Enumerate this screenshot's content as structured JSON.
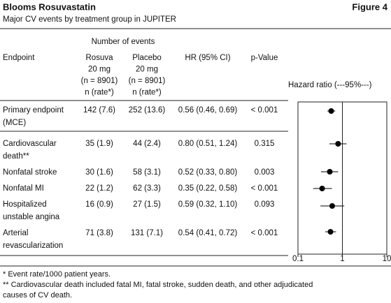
{
  "header": {
    "title": "Blooms Rosuvastatin",
    "figure": "Figure 4",
    "subtitle": "Major CV events by treatment group in JUPITER"
  },
  "table": {
    "group_header": "Number of events",
    "columns": [
      [
        "Endpoint"
      ],
      [
        "Rosuva",
        "20 mg",
        "(n = 8901)",
        "n (rate*)"
      ],
      [
        "Placebo",
        "20 mg",
        "(n = 8901)",
        "n (rate*)"
      ],
      [
        "HR (95% CI)"
      ],
      [
        "p-Value"
      ]
    ],
    "rows": [
      [
        [
          "Primary endpoint",
          "(MCE)"
        ],
        "142 (7.6)",
        "252 (13.6)",
        "0.56 (0.46, 0.69)",
        "< 0.001"
      ],
      [
        [
          "Cardiovascular",
          "death**"
        ],
        "35 (1.9)",
        "44 (2.4)",
        "0.80 (0.51, 1.24)",
        "0.315"
      ],
      [
        [
          "Nonfatal stroke"
        ],
        "30 (1.6)",
        "58 (3.1)",
        "0.52 (0.33, 0.80)",
        "0.003"
      ],
      [
        [
          "Nonfatal MI"
        ],
        "22 (1.2)",
        "62 (3.3)",
        "0.35 (0.22, 0.58)",
        "< 0.001"
      ],
      [
        [
          "Hospitalized",
          "unstable angina"
        ],
        "16 (0.9)",
        "27 (1.5)",
        "0.59 (0.32, 1.10)",
        "0.093"
      ],
      [
        [
          "Arterial",
          "revascularization"
        ],
        "71 (3.8)",
        "131 (7.1)",
        "0.54 (0.41, 0.72)",
        "< 0.001"
      ]
    ]
  },
  "chart_data": {
    "type": "forest",
    "title": "Hazard ratio (---95%---)",
    "xscale": "log",
    "xlim": [
      0.1,
      10
    ],
    "xticks": [
      0.1,
      1,
      10
    ],
    "color": "#000000",
    "hr": [
      0.56,
      0.8,
      0.52,
      0.35,
      0.59,
      0.54
    ],
    "lower": [
      0.46,
      0.51,
      0.33,
      0.22,
      0.32,
      0.41
    ],
    "upper": [
      0.69,
      1.24,
      0.8,
      0.58,
      1.1,
      0.72
    ]
  },
  "footnotes": [
    "* Event rate/1000 patient years.",
    "** Cardiovascular death included fatal MI, fatal stroke, sudden death, and other adjudicated",
    "causes of CV death."
  ]
}
